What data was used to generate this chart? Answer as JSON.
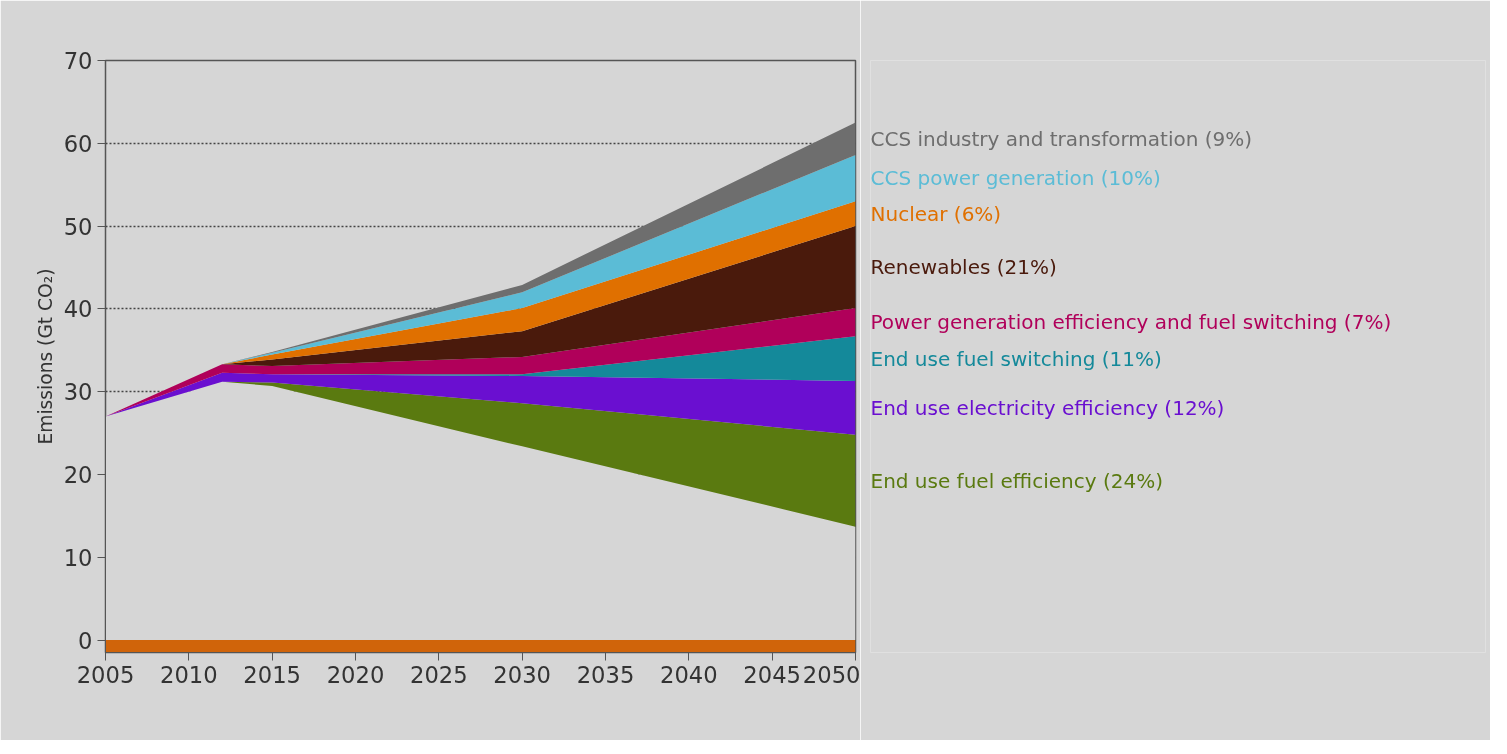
{
  "chart_data": {
    "type": "area",
    "stacked": true,
    "ylabel": "Emissions (Gt CO₂)",
    "x": [
      2005,
      2012,
      2015,
      2030,
      2050
    ],
    "xlim": [
      2005,
      2050
    ],
    "xticks": [
      2005,
      2010,
      2015,
      2020,
      2025,
      2030,
      2035,
      2040,
      2045,
      2050
    ],
    "ylim": [
      -1.5,
      70
    ],
    "yticks": [
      0,
      10,
      20,
      30,
      40,
      50,
      60,
      70
    ],
    "grid": "y",
    "bands": [
      {
        "axis": "y",
        "from": -1.5,
        "to": 0,
        "color": "#d0640a"
      }
    ],
    "series": [
      {
        "color": "#d6d6d6",
        "values": [
          27,
          31.2,
          30.7,
          23.4,
          13.7
        ]
      },
      {
        "name": "End use fuel efficiency (24%)",
        "color": "#5a7a10",
        "values": [
          0,
          0,
          0.4,
          5.2,
          11.1
        ]
      },
      {
        "name": "End use electricity efficiency (12%)",
        "color": "#6a0fd0",
        "values": [
          0,
          1.1,
          1.0,
          3.3,
          6.5
        ]
      },
      {
        "name": "End use fuel switching (11%)",
        "color": "#14899a",
        "values": [
          0,
          0,
          0,
          0.2,
          5.4
        ]
      },
      {
        "name": "Power generation efficiency and fuel switching (7%)",
        "color": "#b0005a",
        "values": [
          0,
          1.0,
          1.0,
          2.1,
          3.4
        ]
      },
      {
        "name": "Renewables (21%)",
        "color": "#4a1a0c",
        "values": [
          0,
          0,
          0.8,
          3.1,
          9.9
        ]
      },
      {
        "name": "Nuclear (6%)",
        "color": "#e07000",
        "values": [
          0,
          0,
          0.6,
          2.8,
          3.0
        ]
      },
      {
        "name": "CCS power generation (10%)",
        "color": "#5bbcd6",
        "values": [
          0,
          0,
          0.2,
          1.9,
          5.6
        ]
      },
      {
        "name": "CCS industry and transformation (9%)",
        "color": "#6e6e6e",
        "values": [
          0,
          0,
          0.1,
          0.9,
          3.9
        ]
      }
    ]
  }
}
